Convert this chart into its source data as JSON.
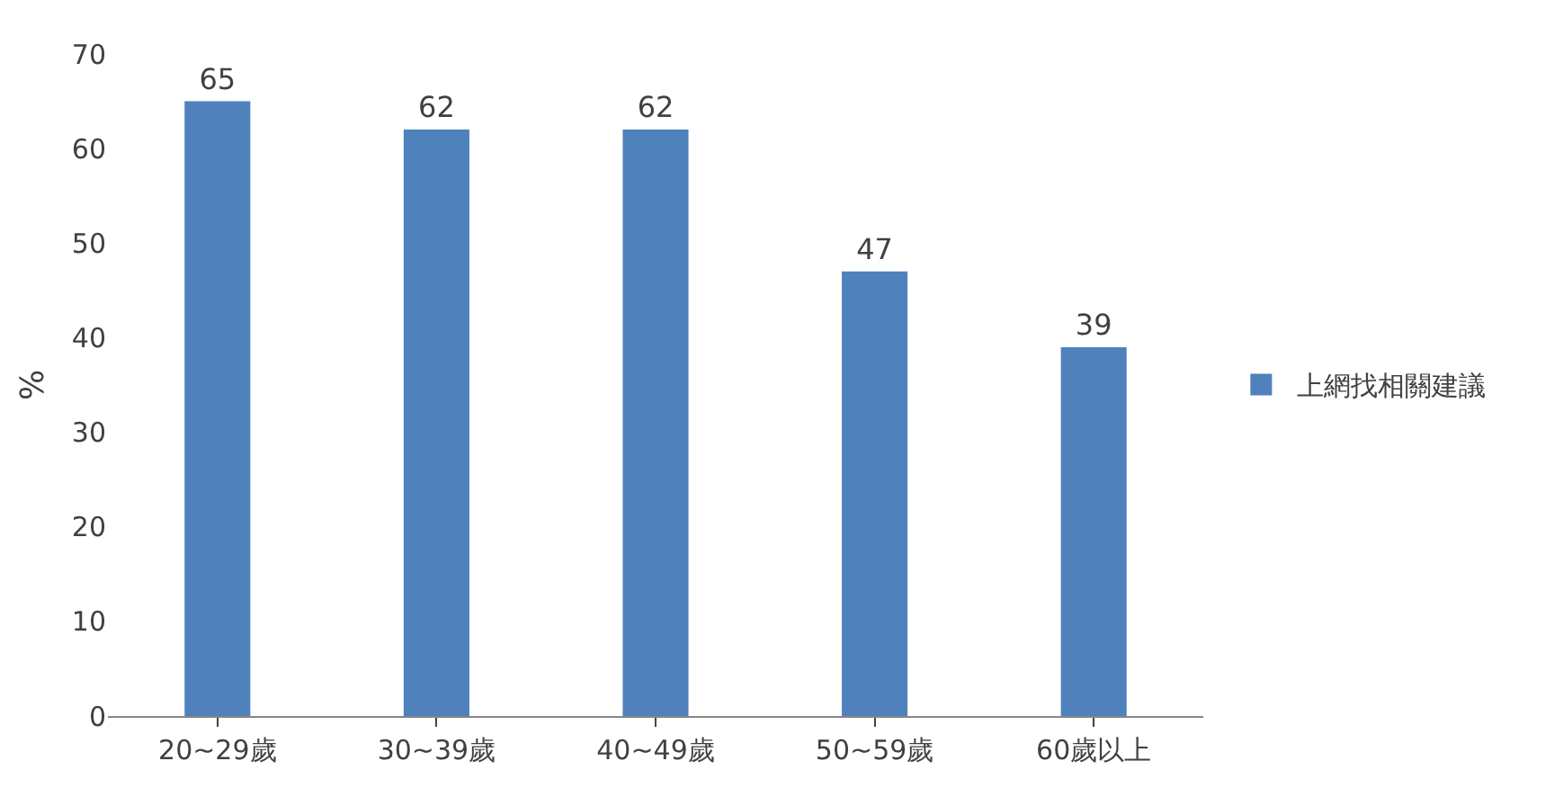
{
  "chart_data": {
    "type": "bar",
    "ylabel": "%",
    "categories": [
      "20~29歲",
      "30~39歲",
      "40~49歲",
      "50~59歲",
      "60歲以上"
    ],
    "series": [
      {
        "name": "上網找相關建議",
        "color": "#4f81bd",
        "values": [
          65,
          62,
          62,
          47,
          39
        ]
      }
    ],
    "ylim": [
      0,
      70
    ],
    "yticks": [
      0,
      10,
      20,
      30,
      40,
      50,
      60,
      70
    ],
    "data_labels": true,
    "legend": "right"
  }
}
